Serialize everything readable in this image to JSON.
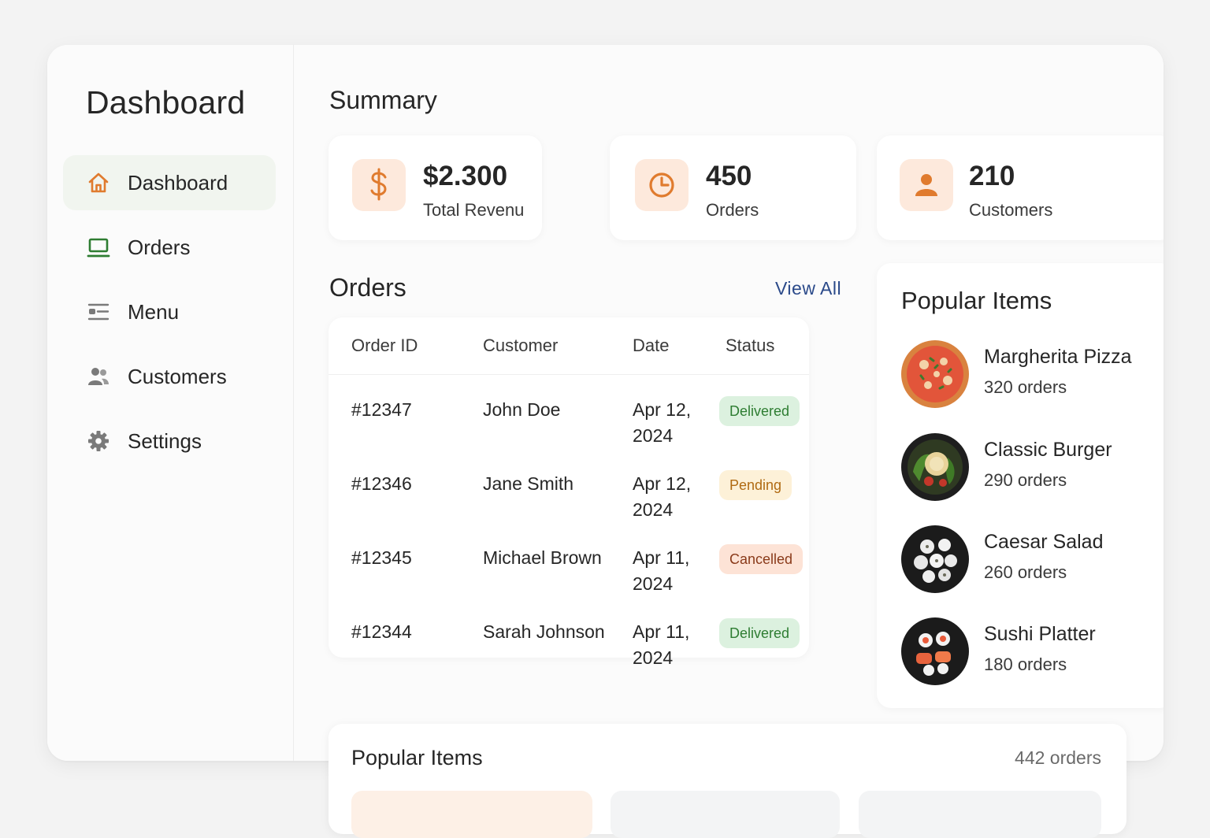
{
  "sidebar": {
    "title": "Dashboard",
    "items": [
      {
        "label": "Dashboard",
        "icon": "home-icon",
        "active": true
      },
      {
        "label": "Orders",
        "icon": "laptop-icon"
      },
      {
        "label": "Menu",
        "icon": "menu-list-icon"
      },
      {
        "label": "Customers",
        "icon": "users-icon"
      },
      {
        "label": "Settings",
        "icon": "gear-icon"
      }
    ]
  },
  "summary": {
    "title": "Summary",
    "cards": [
      {
        "value": "$2.300",
        "label": "Total Revenu",
        "icon": "dollar-icon"
      },
      {
        "value": "450",
        "label": "Orders",
        "icon": "clock-icon"
      },
      {
        "value": "210",
        "label": "Customers",
        "icon": "user-icon"
      }
    ]
  },
  "orders": {
    "title": "Orders",
    "view_all": "View All",
    "columns": [
      "Order ID",
      "Customer",
      "Date",
      "Status"
    ],
    "rows": [
      {
        "id": "#12347",
        "customer": "John Doe",
        "date_line1": "Apr 12,",
        "date_line2": "2024",
        "status": "Delivered"
      },
      {
        "id": "#12346",
        "customer": "Jane Smith",
        "date_line1": "Apr 12,",
        "date_line2": "2024",
        "status": "Pending"
      },
      {
        "id": "#12345",
        "customer": "Michael Brown",
        "date_line1": "Apr 11,",
        "date_line2": "2024",
        "status": "Cancelled"
      },
      {
        "id": "#12344",
        "customer": "Sarah Johnson",
        "date_line1": "Apr 11,",
        "date_line2": "2024",
        "status": "Delivered"
      }
    ]
  },
  "popular": {
    "title": "Popular Items",
    "items": [
      {
        "name": "Margherita Pizza",
        "count": "320 orders",
        "image": "pizza-image"
      },
      {
        "name": "Classic Burger",
        "count": "290 orders",
        "image": "burger-image"
      },
      {
        "name": "Caesar Salad",
        "count": "260 orders",
        "image": "salad-image"
      },
      {
        "name": "Sushi Platter",
        "count": "180 orders",
        "image": "sushi-image"
      }
    ]
  },
  "bottom": {
    "title": "Popular Items",
    "count": "442 orders"
  },
  "colors": {
    "accent_orange": "#e07b2e",
    "accent_green": "#2e7d32",
    "link_blue": "#2b4a8a"
  }
}
